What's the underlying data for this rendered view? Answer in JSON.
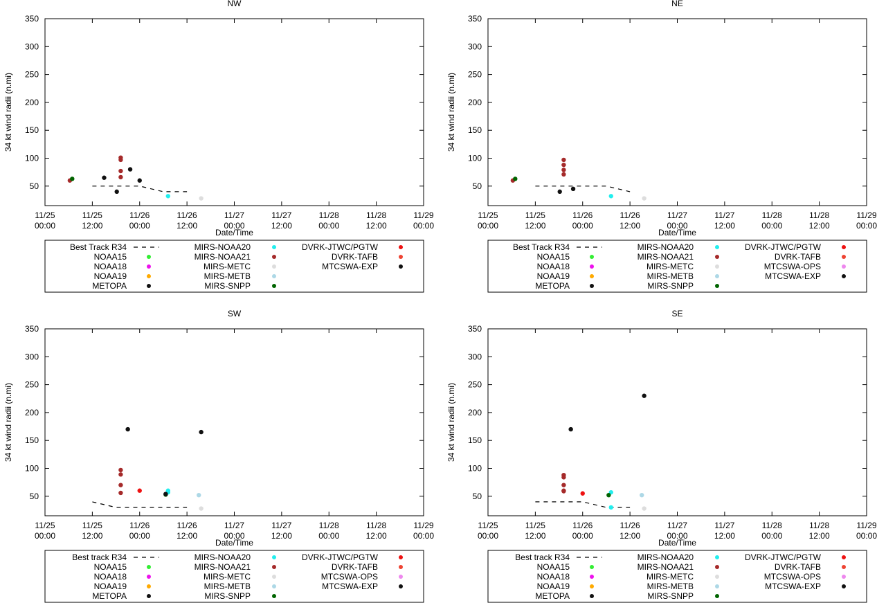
{
  "colors": {
    "best": "#000000",
    "NOAA15": "#33ee33",
    "NOAA18": "#ee11ee",
    "NOAA19": "#ffaa00",
    "METOPA": "#111111",
    "MIRS-NOAA20": "#22eeee",
    "MIRS-NOAA21": "#a52a2a",
    "MIRS-METC": "#dddddd",
    "MIRS-METB": "#add8e6",
    "MIRS-SNPP": "#006400",
    "DVRK-JTWC/PGTW": "#ee1111",
    "DVRK-TAFB": "#ee4433",
    "MTCSWA-OPS": "#ee88ee",
    "MTCSWA-EXP": "#111111"
  },
  "chart_data": [
    {
      "type": "scatter",
      "title": "NW",
      "xlabel": "Date/Time",
      "ylabel": "34 kt wind radii (n.mi)",
      "xlim": [
        0,
        96
      ],
      "ylim": [
        15,
        350
      ],
      "yticks": [
        50,
        100,
        150,
        200,
        250,
        300,
        350
      ],
      "xticks": [
        {
          "v": 0,
          "l1": "11/25",
          "l2": "00:00"
        },
        {
          "v": 12,
          "l1": "11/25",
          "l2": "12:00"
        },
        {
          "v": 24,
          "l1": "11/26",
          "l2": "00:00"
        },
        {
          "v": 36,
          "l1": "11/26",
          "l2": "12:00"
        },
        {
          "v": 48,
          "l1": "11/27",
          "l2": "00:00"
        },
        {
          "v": 60,
          "l1": "11/27",
          "l2": "12:00"
        },
        {
          "v": 72,
          "l1": "11/28",
          "l2": "00:00"
        },
        {
          "v": 84,
          "l1": "11/28",
          "l2": "12:00"
        },
        {
          "v": 96,
          "l1": "11/29",
          "l2": "00:00"
        }
      ],
      "best_track": {
        "name": "Best Track R34",
        "x": [
          12,
          18,
          24,
          30,
          36
        ],
        "y": [
          50,
          50,
          50,
          40,
          40
        ]
      },
      "series": [
        {
          "name": "MIRS-NOAA21",
          "x": [
            6.3,
            19.2,
            19.2,
            19.2,
            19.2
          ],
          "y": [
            60,
            101,
            97,
            77,
            66
          ]
        },
        {
          "name": "MIRS-SNPP",
          "x": [
            6.9
          ],
          "y": [
            63
          ]
        },
        {
          "name": "METOPA",
          "x": [
            15,
            18.2,
            21.6,
            24
          ],
          "y": [
            65,
            40,
            80,
            60
          ]
        },
        {
          "name": "MIRS-NOAA20",
          "x": [
            31.2
          ],
          "y": [
            32
          ]
        },
        {
          "name": "MIRS-METC",
          "x": [
            39.6
          ],
          "y": [
            28
          ]
        }
      ],
      "legend": {
        "columns": [
          [
            {
              "name": "Best Track R34",
              "kind": "line"
            },
            {
              "name": "NOAA15"
            },
            {
              "name": "NOAA18"
            },
            {
              "name": "NOAA19"
            },
            {
              "name": "METOPA"
            }
          ],
          [
            {
              "name": "MIRS-NOAA20"
            },
            {
              "name": "MIRS-NOAA21"
            },
            {
              "name": "MIRS-METC"
            },
            {
              "name": "MIRS-METB"
            },
            {
              "name": "MIRS-SNPP"
            }
          ],
          [
            {
              "name": "DVRK-JTWC/PGTW"
            },
            {
              "name": "DVRK-TAFB"
            },
            {
              "name": "MTCSWA-EXP"
            }
          ]
        ]
      }
    },
    {
      "type": "scatter",
      "title": "NE",
      "xlabel": "Date/Time",
      "ylabel": "34 kt wind radii (n.mi)",
      "xlim": [
        0,
        96
      ],
      "ylim": [
        15,
        350
      ],
      "yticks": [
        50,
        100,
        150,
        200,
        250,
        300,
        350
      ],
      "xticks": [
        {
          "v": 0,
          "l1": "11/25",
          "l2": "00:00"
        },
        {
          "v": 12,
          "l1": "11/25",
          "l2": "12:00"
        },
        {
          "v": 24,
          "l1": "11/26",
          "l2": "00:00"
        },
        {
          "v": 36,
          "l1": "11/26",
          "l2": "12:00"
        },
        {
          "v": 48,
          "l1": "11/27",
          "l2": "00:00"
        },
        {
          "v": 60,
          "l1": "11/27",
          "l2": "12:00"
        },
        {
          "v": 72,
          "l1": "11/28",
          "l2": "00:00"
        },
        {
          "v": 84,
          "l1": "11/28",
          "l2": "12:00"
        },
        {
          "v": 96,
          "l1": "11/29",
          "l2": "00:00"
        }
      ],
      "best_track": {
        "name": "Best Track R34",
        "x": [
          12,
          18,
          24,
          30,
          36
        ],
        "y": [
          50,
          50,
          50,
          50,
          40
        ]
      },
      "series": [
        {
          "name": "MIRS-NOAA21",
          "x": [
            6.3,
            19.2,
            19.2,
            19.2,
            19.2
          ],
          "y": [
            60,
            97,
            88,
            79,
            71
          ]
        },
        {
          "name": "MIRS-SNPP",
          "x": [
            6.9
          ],
          "y": [
            63
          ]
        },
        {
          "name": "METOPA",
          "x": [
            18.2,
            21.6
          ],
          "y": [
            40,
            45
          ]
        },
        {
          "name": "MIRS-NOAA20",
          "x": [
            31.2
          ],
          "y": [
            32
          ]
        },
        {
          "name": "MIRS-METC",
          "x": [
            39.6
          ],
          "y": [
            28
          ]
        }
      ],
      "legend": {
        "columns": [
          [
            {
              "name": "Best Track R34",
              "kind": "line"
            },
            {
              "name": "NOAA15"
            },
            {
              "name": "NOAA18"
            },
            {
              "name": "NOAA19"
            },
            {
              "name": "METOPA"
            }
          ],
          [
            {
              "name": "MIRS-NOAA20"
            },
            {
              "name": "MIRS-NOAA21"
            },
            {
              "name": "MIRS-METC"
            },
            {
              "name": "MIRS-METB"
            },
            {
              "name": "MIRS-SNPP"
            }
          ],
          [
            {
              "name": "DVRK-JTWC/PGTW"
            },
            {
              "name": "DVRK-TAFB"
            },
            {
              "name": "MTCSWA-OPS"
            },
            {
              "name": "MTCSWA-EXP"
            }
          ]
        ]
      }
    },
    {
      "type": "scatter",
      "title": "SW",
      "xlabel": "Date/Time",
      "ylabel": "34 kt wind radii (n.mi)",
      "xlim": [
        0,
        96
      ],
      "ylim": [
        15,
        350
      ],
      "yticks": [
        50,
        100,
        150,
        200,
        250,
        300,
        350
      ],
      "xticks": [
        {
          "v": 0,
          "l1": "11/25",
          "l2": "00:00"
        },
        {
          "v": 12,
          "l1": "11/25",
          "l2": "12:00"
        },
        {
          "v": 24,
          "l1": "11/26",
          "l2": "00:00"
        },
        {
          "v": 36,
          "l1": "11/26",
          "l2": "12:00"
        },
        {
          "v": 48,
          "l1": "11/27",
          "l2": "00:00"
        },
        {
          "v": 60,
          "l1": "11/27",
          "l2": "12:00"
        },
        {
          "v": 72,
          "l1": "11/28",
          "l2": "00:00"
        },
        {
          "v": 84,
          "l1": "11/28",
          "l2": "12:00"
        },
        {
          "v": 96,
          "l1": "11/29",
          "l2": "00:00"
        }
      ],
      "best_track": {
        "name": "Best track R34",
        "x": [
          12,
          18,
          24,
          30,
          36
        ],
        "y": [
          40,
          30,
          30,
          30,
          30
        ]
      },
      "series": [
        {
          "name": "MIRS-NOAA21",
          "x": [
            19.2,
            19.2,
            19.2,
            19.2
          ],
          "y": [
            97,
            89,
            70,
            56
          ]
        },
        {
          "name": "DVRK-JTWC/PGTW",
          "x": [
            24
          ],
          "y": [
            60
          ]
        },
        {
          "name": "MIRS-NOAA20",
          "x": [
            31.2,
            31.2
          ],
          "y": [
            60,
            57
          ]
        },
        {
          "name": "MIRS-SNPP",
          "x": [
            30.6
          ],
          "y": [
            53
          ]
        },
        {
          "name": "MIRS-METB",
          "x": [
            39.0
          ],
          "y": [
            52
          ]
        },
        {
          "name": "MIRS-METC",
          "x": [
            39.6
          ],
          "y": [
            28
          ]
        },
        {
          "name": "MTCSWA-EXP",
          "x": [
            21,
            39.6,
            30.6
          ],
          "y": [
            170,
            165,
            54
          ]
        }
      ],
      "legend": {
        "columns": [
          [
            {
              "name": "Best track R34",
              "kind": "line"
            },
            {
              "name": "NOAA15"
            },
            {
              "name": "NOAA18"
            },
            {
              "name": "NOAA19"
            },
            {
              "name": "METOPA"
            }
          ],
          [
            {
              "name": "MIRS-NOAA20"
            },
            {
              "name": "MIRS-NOAA21"
            },
            {
              "name": "MIRS-METC"
            },
            {
              "name": "MIRS-METB"
            },
            {
              "name": "MIRS-SNPP"
            }
          ],
          [
            {
              "name": "DVRK-JTWC/PGTW"
            },
            {
              "name": "DVRK-TAFB"
            },
            {
              "name": "MTCSWA-OPS"
            },
            {
              "name": "MTCSWA-EXP"
            }
          ]
        ]
      }
    },
    {
      "type": "scatter",
      "title": "SE",
      "xlabel": "Date/Time",
      "ylabel": "34 kt wind radii (n.mi)",
      "xlim": [
        0,
        96
      ],
      "ylim": [
        15,
        350
      ],
      "yticks": [
        50,
        100,
        150,
        200,
        250,
        300,
        350
      ],
      "xticks": [
        {
          "v": 0,
          "l1": "11/25",
          "l2": "00:00"
        },
        {
          "v": 12,
          "l1": "11/25",
          "l2": "12:00"
        },
        {
          "v": 24,
          "l1": "11/26",
          "l2": "00:00"
        },
        {
          "v": 36,
          "l1": "11/26",
          "l2": "12:00"
        },
        {
          "v": 48,
          "l1": "11/27",
          "l2": "00:00"
        },
        {
          "v": 60,
          "l1": "11/27",
          "l2": "12:00"
        },
        {
          "v": 72,
          "l1": "11/28",
          "l2": "00:00"
        },
        {
          "v": 84,
          "l1": "11/28",
          "l2": "12:00"
        },
        {
          "v": 96,
          "l1": "11/29",
          "l2": "00:00"
        }
      ],
      "best_track": {
        "name": "Best track R34",
        "x": [
          12,
          18,
          24,
          30,
          36
        ],
        "y": [
          40,
          40,
          40,
          30,
          30
        ]
      },
      "series": [
        {
          "name": "MIRS-NOAA21",
          "x": [
            19.2,
            19.2,
            19.2,
            19.2,
            19.2
          ],
          "y": [
            88,
            84,
            70,
            60,
            59
          ]
        },
        {
          "name": "DVRK-JTWC/PGTW",
          "x": [
            24
          ],
          "y": [
            55
          ]
        },
        {
          "name": "MIRS-NOAA20",
          "x": [
            31.2,
            31.2
          ],
          "y": [
            57,
            30
          ]
        },
        {
          "name": "MIRS-SNPP",
          "x": [
            30.6
          ],
          "y": [
            52
          ]
        },
        {
          "name": "MIRS-METB",
          "x": [
            39.0
          ],
          "y": [
            52
          ]
        },
        {
          "name": "MIRS-METC",
          "x": [
            39.6
          ],
          "y": [
            28
          ]
        },
        {
          "name": "MTCSWA-EXP",
          "x": [
            21,
            39.6
          ],
          "y": [
            170,
            230
          ]
        }
      ],
      "legend": {
        "columns": [
          [
            {
              "name": "Best track R34",
              "kind": "line"
            },
            {
              "name": "NOAA15"
            },
            {
              "name": "NOAA18"
            },
            {
              "name": "NOAA19"
            },
            {
              "name": "METOPA"
            }
          ],
          [
            {
              "name": "MIRS-NOAA20"
            },
            {
              "name": "MIRS-NOAA21"
            },
            {
              "name": "MIRS-METC"
            },
            {
              "name": "MIRS-METB"
            },
            {
              "name": "MIRS-SNPP"
            }
          ],
          [
            {
              "name": "DVRK-JTWC/PGTW"
            },
            {
              "name": "DVRK-TAFB"
            },
            {
              "name": "MTCSWA-OPS"
            },
            {
              "name": "MTCSWA-EXP"
            }
          ]
        ]
      }
    }
  ]
}
